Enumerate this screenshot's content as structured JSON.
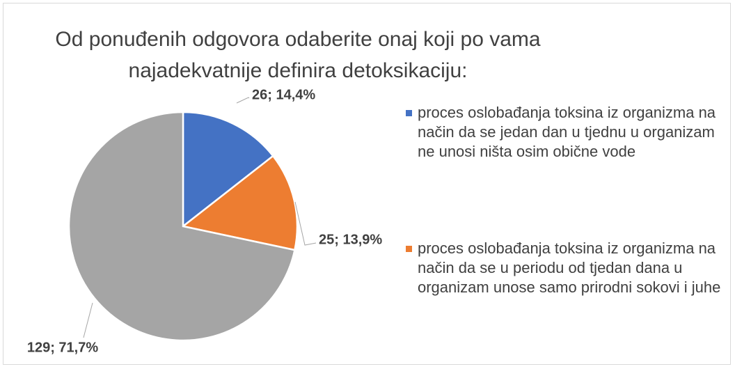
{
  "chart_data": {
    "type": "pie",
    "title": "Od ponuđenih odgovora odaberite onaj koji po vama najadekvatnije definira detoksikaciju:",
    "categories": [
      "proces oslobađanja toksina iz organizma na način da se jedan dan u tjednu u organizam ne unosi ništa osim obične vode",
      "proces oslobađanja toksina iz organizma na način da se u periodu od tjedan dana u organizam unose samo prirodni sokovi i juhe",
      null
    ],
    "values": [
      26,
      25,
      129
    ],
    "value_labels": [
      "26; 14,4%",
      "25; 13,9%",
      "129; 71,7%"
    ],
    "colors": [
      "#4472c4",
      "#ed7d31",
      "#a5a5a5"
    ]
  }
}
